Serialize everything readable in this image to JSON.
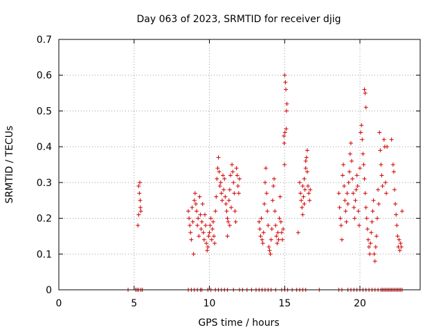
{
  "chart_data": {
    "type": "scatter",
    "title": "Day 063 of 2023, SRMTID for receiver djig",
    "xlabel": "GPS time / hours",
    "ylabel": "SRMTID / TECUs",
    "xlim": [
      0,
      24
    ],
    "ylim": [
      0,
      0.7
    ],
    "grid": true,
    "marker": "+",
    "color": "#d00000",
    "x_ticks": [
      0,
      5,
      10,
      15,
      20
    ],
    "x_tick_labels": [
      "0",
      "5",
      "10",
      "15",
      "20"
    ],
    "y_ticks": [
      0,
      0.1,
      0.2,
      0.3,
      0.4,
      0.5,
      0.6,
      0.7
    ],
    "y_tick_labels": [
      "0",
      "0.1",
      "0.2",
      "0.3",
      "0.4",
      "0.5",
      "0.6",
      "0.7"
    ],
    "series": [
      {
        "name": "SRMTID",
        "points": [
          [
            4.6,
            0
          ],
          [
            5.1,
            0
          ],
          [
            5.2,
            0
          ],
          [
            5.3,
            0
          ],
          [
            5.45,
            0
          ],
          [
            5.55,
            0
          ],
          [
            8.6,
            0
          ],
          [
            8.8,
            0
          ],
          [
            9.0,
            0
          ],
          [
            9.2,
            0
          ],
          [
            9.4,
            0
          ],
          [
            9.5,
            0
          ],
          [
            9.9,
            0
          ],
          [
            10.1,
            0
          ],
          [
            10.4,
            0
          ],
          [
            10.6,
            0
          ],
          [
            10.8,
            0
          ],
          [
            11.0,
            0
          ],
          [
            11.2,
            0
          ],
          [
            11.6,
            0
          ],
          [
            12.0,
            0
          ],
          [
            12.2,
            0
          ],
          [
            12.5,
            0
          ],
          [
            12.8,
            0
          ],
          [
            13.1,
            0
          ],
          [
            13.3,
            0
          ],
          [
            13.5,
            0
          ],
          [
            13.7,
            0
          ],
          [
            13.9,
            0
          ],
          [
            14.1,
            0
          ],
          [
            14.4,
            0
          ],
          [
            14.8,
            0
          ],
          [
            15.0,
            0
          ],
          [
            15.2,
            0
          ],
          [
            15.5,
            0
          ],
          [
            15.8,
            0
          ],
          [
            16.0,
            0
          ],
          [
            16.2,
            0
          ],
          [
            16.4,
            0
          ],
          [
            17.3,
            0
          ],
          [
            18.6,
            0
          ],
          [
            18.8,
            0
          ],
          [
            19.2,
            0
          ],
          [
            19.4,
            0
          ],
          [
            19.6,
            0
          ],
          [
            19.8,
            0
          ],
          [
            20.0,
            0
          ],
          [
            20.2,
            0
          ],
          [
            20.4,
            0
          ],
          [
            20.6,
            0
          ],
          [
            20.8,
            0
          ],
          [
            21.0,
            0
          ],
          [
            21.2,
            0
          ],
          [
            21.4,
            0
          ],
          [
            21.5,
            0
          ],
          [
            21.6,
            0
          ],
          [
            21.7,
            0
          ],
          [
            21.8,
            0
          ],
          [
            21.9,
            0
          ],
          [
            22.0,
            0
          ],
          [
            22.1,
            0
          ],
          [
            22.2,
            0
          ],
          [
            22.3,
            0
          ],
          [
            22.4,
            0
          ],
          [
            22.5,
            0
          ],
          [
            22.6,
            0
          ],
          [
            22.7,
            0
          ],
          [
            22.8,
            0
          ],
          [
            5.3,
            0.29
          ],
          [
            5.35,
            0.27
          ],
          [
            5.4,
            0.25
          ],
          [
            5.42,
            0.23
          ],
          [
            5.3,
            0.21
          ],
          [
            5.25,
            0.18
          ],
          [
            5.45,
            0.22
          ],
          [
            5.38,
            0.3
          ],
          [
            8.6,
            0.22
          ],
          [
            8.65,
            0.2
          ],
          [
            8.7,
            0.18
          ],
          [
            8.75,
            0.16
          ],
          [
            8.8,
            0.14
          ],
          [
            8.85,
            0.23
          ],
          [
            8.9,
            0.19
          ],
          [
            8.95,
            0.1
          ],
          [
            9.0,
            0.25
          ],
          [
            9.05,
            0.27
          ],
          [
            9.1,
            0.24
          ],
          [
            9.15,
            0.22
          ],
          [
            9.2,
            0.18
          ],
          [
            9.25,
            0.2
          ],
          [
            9.3,
            0.15
          ],
          [
            9.35,
            0.26
          ],
          [
            9.4,
            0.21
          ],
          [
            9.45,
            0.17
          ],
          [
            9.5,
            0.19
          ],
          [
            9.55,
            0.24
          ],
          [
            9.6,
            0.16
          ],
          [
            9.65,
            0.14
          ],
          [
            9.7,
            0.21
          ],
          [
            9.75,
            0.18
          ],
          [
            9.8,
            0.13
          ],
          [
            9.85,
            0.11
          ],
          [
            9.9,
            0.12
          ],
          [
            9.95,
            0.15
          ],
          [
            10.0,
            0.16
          ],
          [
            10.05,
            0.18
          ],
          [
            10.1,
            0.2
          ],
          [
            10.15,
            0.14
          ],
          [
            10.2,
            0.17
          ],
          [
            10.25,
            0.19
          ],
          [
            10.3,
            0.15
          ],
          [
            10.35,
            0.13
          ],
          [
            10.4,
            0.22
          ],
          [
            10.45,
            0.26
          ],
          [
            10.5,
            0.31
          ],
          [
            10.55,
            0.34
          ],
          [
            10.6,
            0.37
          ],
          [
            10.65,
            0.33
          ],
          [
            10.7,
            0.29
          ],
          [
            10.75,
            0.3
          ],
          [
            10.8,
            0.27
          ],
          [
            10.85,
            0.25
          ],
          [
            10.9,
            0.32
          ],
          [
            10.95,
            0.28
          ],
          [
            11.0,
            0.31
          ],
          [
            11.05,
            0.26
          ],
          [
            11.1,
            0.24
          ],
          [
            11.15,
            0.22
          ],
          [
            11.2,
            0.2
          ],
          [
            11.25,
            0.19
          ],
          [
            11.3,
            0.25
          ],
          [
            11.35,
            0.28
          ],
          [
            11.4,
            0.32
          ],
          [
            11.5,
            0.35
          ],
          [
            11.55,
            0.33
          ],
          [
            11.6,
            0.3
          ],
          [
            11.65,
            0.27
          ],
          [
            11.7,
            0.22
          ],
          [
            11.75,
            0.19
          ],
          [
            11.8,
            0.34
          ],
          [
            11.85,
            0.32
          ],
          [
            11.9,
            0.29
          ],
          [
            11.95,
            0.27
          ],
          [
            12.0,
            0.31
          ],
          [
            11.45,
            0.23
          ],
          [
            11.35,
            0.18
          ],
          [
            11.2,
            0.15
          ],
          [
            13.3,
            0.19
          ],
          [
            13.35,
            0.17
          ],
          [
            13.4,
            0.15
          ],
          [
            13.45,
            0.2
          ],
          [
            13.5,
            0.14
          ],
          [
            13.55,
            0.13
          ],
          [
            13.6,
            0.16
          ],
          [
            13.65,
            0.24
          ],
          [
            13.7,
            0.3
          ],
          [
            13.75,
            0.34
          ],
          [
            13.8,
            0.27
          ],
          [
            13.85,
            0.22
          ],
          [
            13.9,
            0.18
          ],
          [
            13.95,
            0.12
          ],
          [
            14.0,
            0.11
          ],
          [
            14.05,
            0.1
          ],
          [
            14.1,
            0.14
          ],
          [
            14.15,
            0.17
          ],
          [
            14.2,
            0.25
          ],
          [
            14.25,
            0.29
          ],
          [
            14.3,
            0.31
          ],
          [
            14.35,
            0.22
          ],
          [
            14.4,
            0.18
          ],
          [
            14.45,
            0.15
          ],
          [
            14.5,
            0.13
          ],
          [
            14.55,
            0.16
          ],
          [
            14.6,
            0.14
          ],
          [
            14.65,
            0.2
          ],
          [
            14.7,
            0.26
          ],
          [
            14.75,
            0.19
          ],
          [
            14.8,
            0.16
          ],
          [
            14.85,
            0.14
          ],
          [
            14.9,
            0.17
          ],
          [
            14.95,
            0.43
          ],
          [
            14.97,
            0.41
          ],
          [
            14.99,
            0.35
          ],
          [
            15.0,
            0.6
          ],
          [
            15.05,
            0.58
          ],
          [
            15.08,
            0.56
          ],
          [
            15.12,
            0.5
          ],
          [
            15.15,
            0.52
          ],
          [
            15.1,
            0.45
          ],
          [
            15.02,
            0.44
          ],
          [
            15.9,
            0.16
          ],
          [
            16.0,
            0.3
          ],
          [
            16.05,
            0.27
          ],
          [
            16.1,
            0.25
          ],
          [
            16.15,
            0.23
          ],
          [
            16.2,
            0.29
          ],
          [
            16.25,
            0.26
          ],
          [
            16.3,
            0.31
          ],
          [
            16.35,
            0.28
          ],
          [
            16.4,
            0.34
          ],
          [
            16.45,
            0.37
          ],
          [
            16.5,
            0.33
          ],
          [
            16.55,
            0.29
          ],
          [
            16.6,
            0.27
          ],
          [
            16.65,
            0.25
          ],
          [
            16.7,
            0.28
          ],
          [
            16.2,
            0.21
          ],
          [
            16.3,
            0.24
          ],
          [
            16.5,
            0.39
          ],
          [
            16.4,
            0.36
          ],
          [
            18.6,
            0.27
          ],
          [
            18.65,
            0.23
          ],
          [
            18.7,
            0.2
          ],
          [
            18.75,
            0.18
          ],
          [
            18.8,
            0.14
          ],
          [
            18.85,
            0.32
          ],
          [
            18.9,
            0.35
          ],
          [
            18.95,
            0.29
          ],
          [
            19.0,
            0.25
          ],
          [
            19.05,
            0.22
          ],
          [
            19.1,
            0.19
          ],
          [
            19.15,
            0.27
          ],
          [
            19.2,
            0.24
          ],
          [
            19.25,
            0.3
          ],
          [
            19.3,
            0.33
          ],
          [
            19.35,
            0.38
          ],
          [
            19.4,
            0.41
          ],
          [
            19.45,
            0.36
          ],
          [
            19.5,
            0.31
          ],
          [
            19.55,
            0.27
          ],
          [
            19.6,
            0.23
          ],
          [
            19.65,
            0.2
          ],
          [
            19.7,
            0.25
          ],
          [
            19.75,
            0.28
          ],
          [
            19.8,
            0.32
          ],
          [
            19.85,
            0.29
          ],
          [
            19.9,
            0.22
          ],
          [
            19.95,
            0.18
          ],
          [
            20.0,
            0.34
          ],
          [
            20.05,
            0.44
          ],
          [
            20.1,
            0.46
          ],
          [
            20.15,
            0.42
          ],
          [
            20.2,
            0.38
          ],
          [
            20.25,
            0.35
          ],
          [
            20.3,
            0.31
          ],
          [
            20.35,
            0.27
          ],
          [
            20.4,
            0.23
          ],
          [
            20.45,
            0.2
          ],
          [
            20.5,
            0.17
          ],
          [
            20.55,
            0.14
          ],
          [
            20.6,
            0.12
          ],
          [
            20.3,
            0.56
          ],
          [
            20.35,
            0.55
          ],
          [
            20.4,
            0.51
          ],
          [
            20.65,
            0.1
          ],
          [
            20.7,
            0.13
          ],
          [
            20.75,
            0.16
          ],
          [
            20.8,
            0.19
          ],
          [
            20.85,
            0.22
          ],
          [
            20.9,
            0.25
          ],
          [
            20.95,
            0.1
          ],
          [
            21.0,
            0.08
          ],
          [
            21.05,
            0.12
          ],
          [
            21.1,
            0.15
          ],
          [
            21.15,
            0.2
          ],
          [
            21.2,
            0.28
          ],
          [
            21.25,
            0.24
          ],
          [
            21.3,
            0.44
          ],
          [
            21.35,
            0.39
          ],
          [
            21.4,
            0.35
          ],
          [
            21.45,
            0.32
          ],
          [
            21.5,
            0.29
          ],
          [
            21.6,
            0.42
          ],
          [
            21.65,
            0.4
          ],
          [
            21.7,
            0.3
          ],
          [
            21.75,
            0.27
          ],
          [
            21.8,
            0.4
          ],
          [
            22.1,
            0.42
          ],
          [
            22.2,
            0.35
          ],
          [
            22.25,
            0.33
          ],
          [
            22.3,
            0.28
          ],
          [
            22.35,
            0.24
          ],
          [
            22.4,
            0.21
          ],
          [
            22.45,
            0.18
          ],
          [
            22.5,
            0.15
          ],
          [
            22.55,
            0.12
          ],
          [
            22.6,
            0.14
          ],
          [
            22.65,
            0.11
          ],
          [
            22.7,
            0.13
          ],
          [
            22.75,
            0.12
          ],
          [
            22.8,
            0.22
          ]
        ]
      }
    ]
  }
}
